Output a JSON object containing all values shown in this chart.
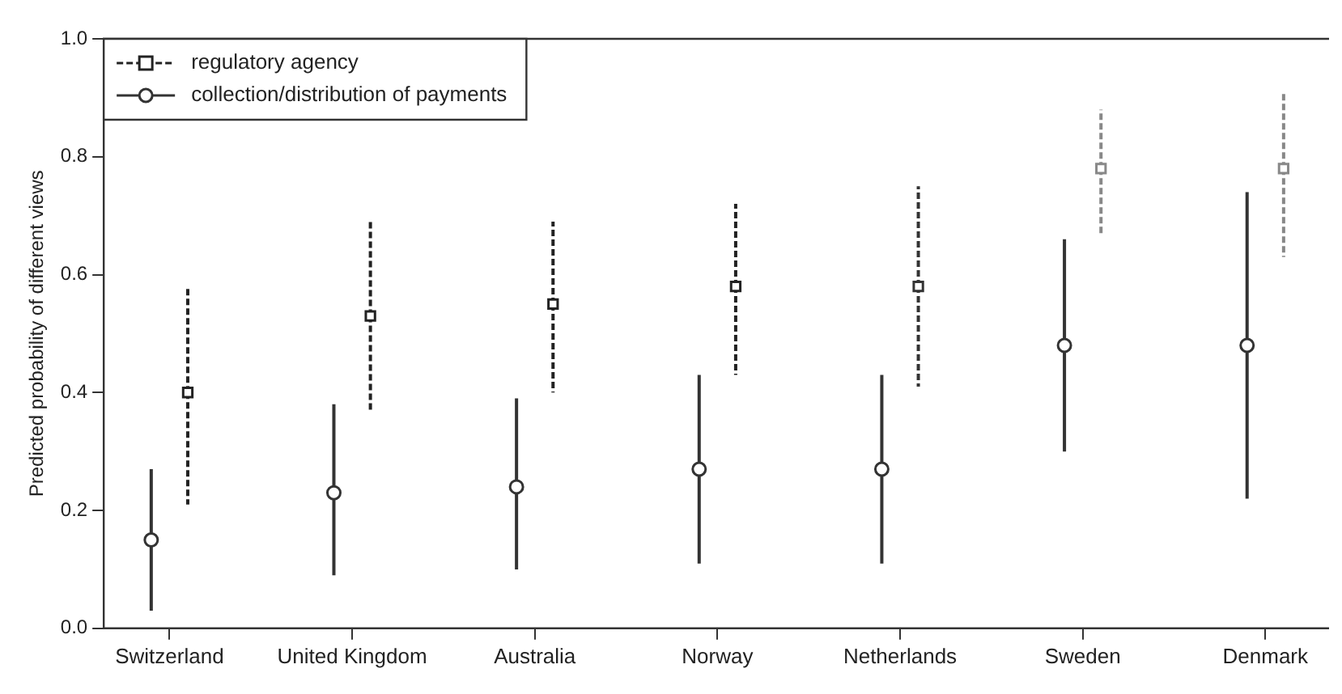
{
  "chart_data": {
    "type": "scatter",
    "ylabel": "Predicted probability of different views",
    "categories": [
      "Switzerland",
      "United Kingdom",
      "Australia",
      "Norway",
      "Netherlands",
      "Sweden",
      "Denmark"
    ],
    "ylim": [
      0,
      1
    ],
    "yticks": [
      {
        "value": 0,
        "label": "0.0"
      },
      {
        "value": 0.2,
        "label": "0.2"
      },
      {
        "value": 0.4,
        "label": "0.4"
      },
      {
        "value": 0.6,
        "label": "0.6"
      },
      {
        "value": 0.8,
        "label": "0.8"
      },
      {
        "value": 1,
        "label": "1.0"
      }
    ],
    "grid": false,
    "legend": "top left",
    "series": [
      {
        "name": "regulatory agency",
        "color": "#222222",
        "colors": [
          "#222222",
          "#222222",
          "#222222",
          "#222222",
          "#333333",
          "#888888",
          "#888888"
        ],
        "marker": "square",
        "line_style": "dashed",
        "values": [
          0.4,
          0.53,
          0.55,
          0.58,
          0.58,
          0.78,
          0.78
        ],
        "errors": [
          [
            0.21,
            0.58
          ],
          [
            0.37,
            0.69
          ],
          [
            0.4,
            0.69
          ],
          [
            0.43,
            0.72
          ],
          [
            0.41,
            0.75
          ],
          [
            0.67,
            0.88
          ],
          [
            0.63,
            0.91
          ]
        ]
      },
      {
        "name": "collection/distribution of payments",
        "color": "#333333",
        "marker": "circle",
        "line_style": "solid",
        "values": [
          0.15,
          0.23,
          0.24,
          0.27,
          0.27,
          0.48,
          0.48
        ],
        "errors": [
          [
            0.03,
            0.27
          ],
          [
            0.09,
            0.38
          ],
          [
            0.1,
            0.39
          ],
          [
            0.11,
            0.43
          ],
          [
            0.11,
            0.43
          ],
          [
            0.3,
            0.66
          ],
          [
            0.22,
            0.74
          ]
        ]
      }
    ]
  }
}
